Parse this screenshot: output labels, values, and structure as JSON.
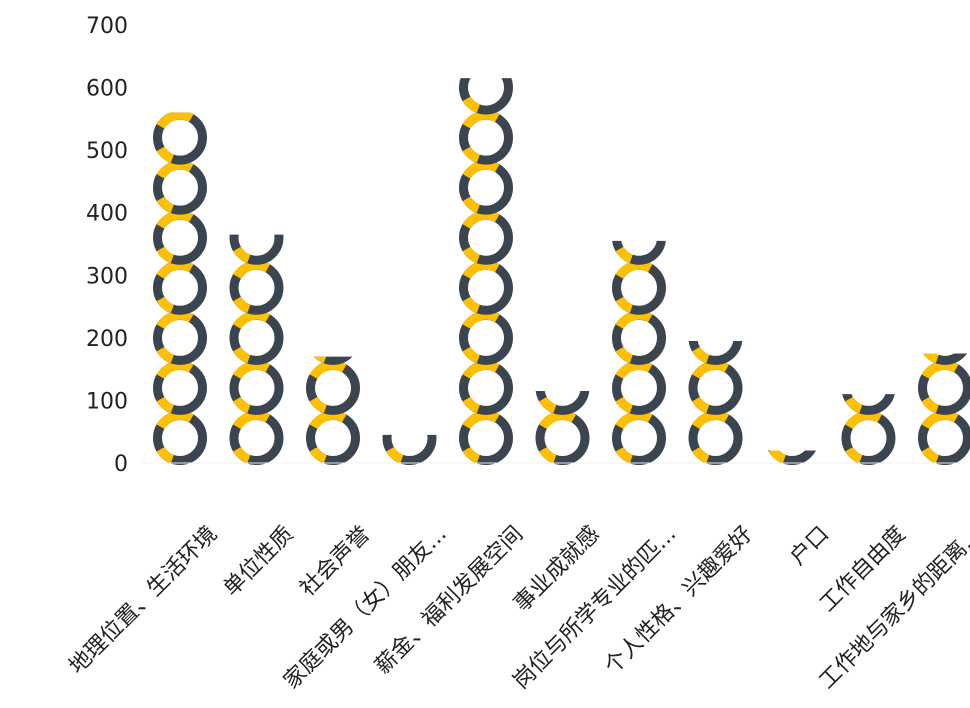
{
  "chart_data": {
    "type": "bar",
    "title": "",
    "xlabel": "",
    "ylabel": "",
    "ylim": [
      0,
      700
    ],
    "yticks": [
      0,
      100,
      200,
      300,
      400,
      500,
      600,
      700
    ],
    "grid": false,
    "legend": "none",
    "categories": [
      "地理位置、生活环境",
      "单位性质",
      "社会声誉",
      "家庭或男（女）朋友...",
      "薪金、福利发展空间",
      "事业成就感",
      "岗位与所学专业的匹...",
      "个人性格、兴趣爱好",
      "户口",
      "工作自由度",
      "工作地与家乡的距离..."
    ],
    "values": [
      560,
      365,
      170,
      45,
      615,
      115,
      355,
      195,
      20,
      110,
      175
    ],
    "marker": "ring",
    "ring_colors": {
      "primary": "#FFC000",
      "secondary": "#3B4550"
    }
  }
}
